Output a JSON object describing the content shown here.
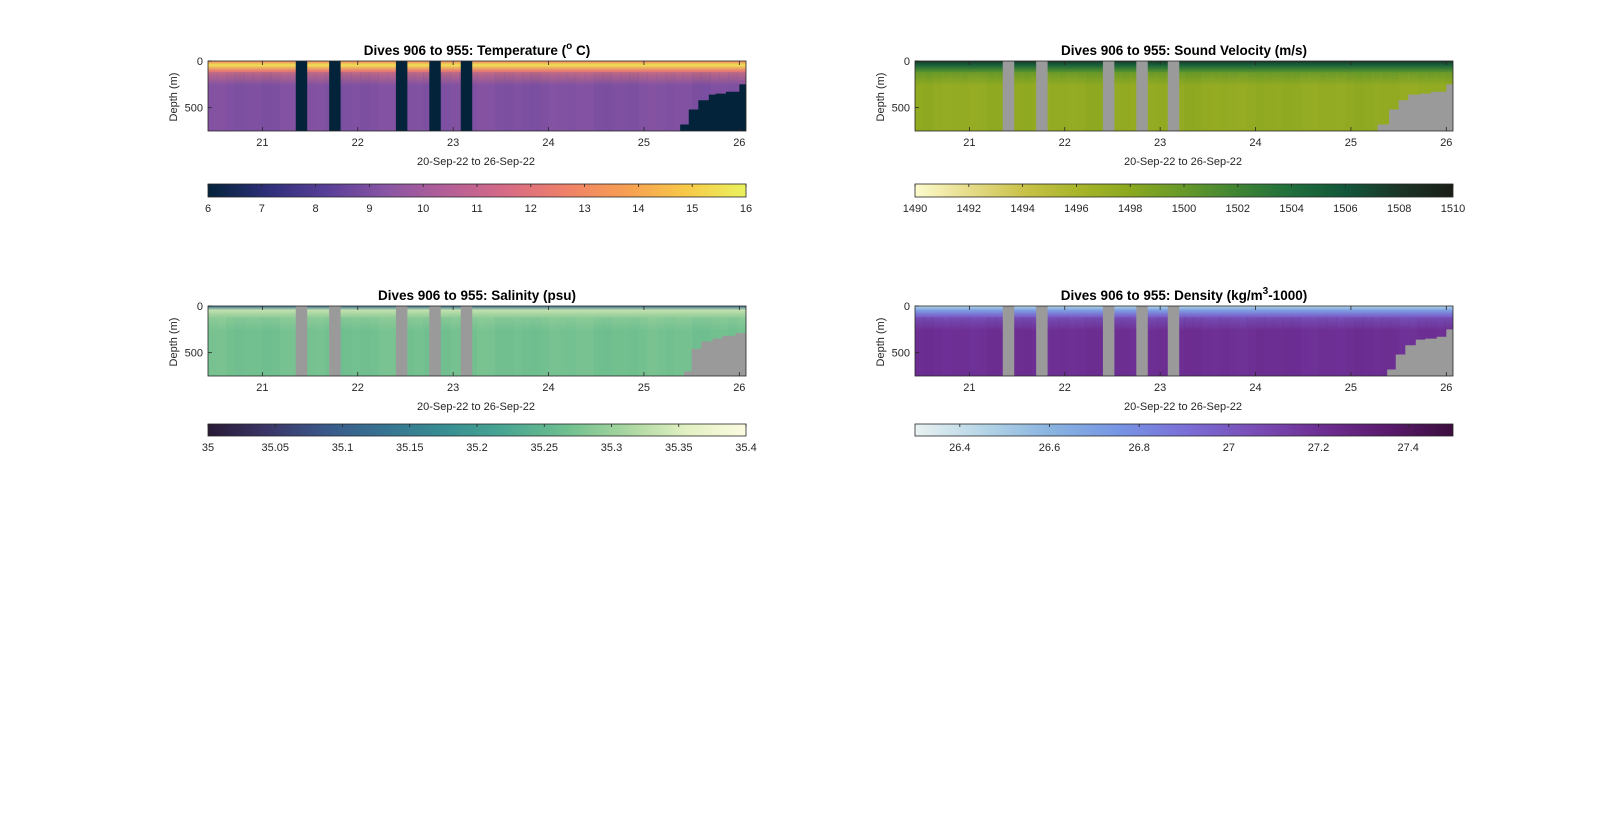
{
  "figure": {
    "panels": [
      {
        "id": "temperature",
        "title_main": "Dives 906 to 955: Temperature (",
        "title_sup": "o",
        "title_end": " C)"
      },
      {
        "id": "sound_velocity",
        "title_main": "Dives 906 to 955: Sound Velocity (m/s)",
        "title_sup": "",
        "title_end": ""
      },
      {
        "id": "salinity",
        "title_main": "Dives 906 to 955: Salinity (psu)",
        "title_sup": "",
        "title_end": ""
      },
      {
        "id": "density",
        "title_main": "Dives 906 to 955: Density (kg/m",
        "title_sup": "3",
        "title_end": "-1000)"
      }
    ]
  },
  "chart_data": [
    {
      "type": "heatmap",
      "title": "Dives 906 to 955: Temperature (o C)",
      "xlabel": "20-Sep-22 to 26-Sep-22",
      "ylabel": "Depth (m)",
      "x_ticks": [
        21,
        22,
        23,
        24,
        25,
        26
      ],
      "y_ticks": [
        0,
        500
      ],
      "xlim": [
        20.43,
        26.07
      ],
      "ylim": [
        750,
        0
      ],
      "clim": [
        6,
        16
      ],
      "colorbar_ticks": [
        6,
        7,
        8,
        9,
        10,
        11,
        12,
        13,
        14,
        15,
        16
      ],
      "colormap": [
        "#03233a",
        "#2e2f7a",
        "#5a3f98",
        "#8a56a4",
        "#b45f98",
        "#d76b85",
        "#ef8168",
        "#f79f52",
        "#f7c948",
        "#eaf25e"
      ],
      "missing_color": "#03233a",
      "mixed_layer_value": 15.5,
      "surface_value": 13,
      "deep_value": 9.1,
      "gap_columns": [
        21.35,
        21.7,
        22.4,
        22.75,
        23.08
      ],
      "gap_width": 0.12,
      "seafloor_profile": [
        [
          25.3,
          750
        ],
        [
          25.38,
          680
        ],
        [
          25.47,
          520
        ],
        [
          25.57,
          420
        ],
        [
          25.68,
          360
        ],
        [
          25.75,
          350
        ],
        [
          25.86,
          330
        ],
        [
          26.0,
          250
        ],
        [
          26.07,
          250
        ]
      ]
    },
    {
      "type": "heatmap",
      "title": "Dives 906 to 955: Sound Velocity (m/s)",
      "xlabel": "20-Sep-22 to 26-Sep-22",
      "ylabel": "Depth (m)",
      "x_ticks": [
        21,
        22,
        23,
        24,
        25,
        26
      ],
      "y_ticks": [
        0,
        500
      ],
      "xlim": [
        20.43,
        26.07
      ],
      "ylim": [
        750,
        0
      ],
      "clim": [
        1490,
        1510
      ],
      "colorbar_ticks": [
        1490,
        1492,
        1494,
        1496,
        1498,
        1500,
        1502,
        1504,
        1506,
        1508,
        1510
      ],
      "colormap": [
        "#fdfbce",
        "#e6dc8a",
        "#c9c24a",
        "#a9b52a",
        "#8aa81f",
        "#66992a",
        "#3f8434",
        "#1f6e3b",
        "#12563a",
        "#1b3526",
        "#1a1e17"
      ],
      "missing_color": "#9a9a9a",
      "mixed_layer_value": 1505,
      "surface_value": 1508,
      "deep_value": 1497.5,
      "gap_columns": [
        21.35,
        21.7,
        22.4,
        22.75,
        23.08
      ],
      "gap_width": 0.12,
      "seafloor_profile": [
        [
          25.2,
          750
        ],
        [
          25.28,
          680
        ],
        [
          25.4,
          520
        ],
        [
          25.5,
          420
        ],
        [
          25.6,
          360
        ],
        [
          25.72,
          350
        ],
        [
          25.84,
          330
        ],
        [
          26.0,
          250
        ],
        [
          26.07,
          250
        ]
      ]
    },
    {
      "type": "heatmap",
      "title": "Dives 906 to 955: Salinity (psu)",
      "xlabel": "20-Sep-22 to 26-Sep-22",
      "ylabel": "Depth (m)",
      "x_ticks": [
        21,
        22,
        23,
        24,
        25,
        26
      ],
      "y_ticks": [
        0,
        500
      ],
      "xlim": [
        20.43,
        26.07
      ],
      "ylim": [
        750,
        0
      ],
      "clim": [
        35,
        35.4
      ],
      "colorbar_ticks": [
        35,
        35.05,
        35.1,
        35.15,
        35.2,
        35.25,
        35.3,
        35.35,
        35.4
      ],
      "colormap": [
        "#291a35",
        "#3a3668",
        "#3a5a8a",
        "#377592",
        "#378f92",
        "#4aa792",
        "#6fbf8f",
        "#a8d6a0",
        "#e2f0c2",
        "#fcfbe1"
      ],
      "missing_color": "#9a9a9a",
      "mixed_layer_value": 35.33,
      "surface_value": 35.12,
      "deep_value": 35.27,
      "gap_columns": [
        21.35,
        21.7,
        22.4,
        22.75,
        23.08
      ],
      "gap_width": 0.12,
      "seafloor_profile": [
        [
          25.35,
          750
        ],
        [
          25.42,
          700
        ],
        [
          25.5,
          460
        ],
        [
          25.6,
          380
        ],
        [
          25.72,
          350
        ],
        [
          25.82,
          320
        ],
        [
          25.96,
          290
        ],
        [
          26.07,
          290
        ]
      ]
    },
    {
      "type": "heatmap",
      "title": "Dives 906 to 955: Density (kg/m3-1000)",
      "xlabel": "20-Sep-22 to 26-Sep-22",
      "ylabel": "Depth (m)",
      "x_ticks": [
        21,
        22,
        23,
        24,
        25,
        26
      ],
      "y_ticks": [
        0,
        500
      ],
      "xlim": [
        20.43,
        26.07
      ],
      "ylim": [
        750,
        0
      ],
      "clim": [
        26.3,
        27.5
      ],
      "colorbar_ticks": [
        26.4,
        26.6,
        26.8,
        27,
        27.2,
        27.4
      ],
      "colormap": [
        "#e9f2f2",
        "#b6d5e6",
        "#89b4e0",
        "#7796e4",
        "#7a70d8",
        "#7a4fb8",
        "#6e2f94",
        "#5a1a6e",
        "#3c0e3e"
      ],
      "missing_color": "#9a9a9a",
      "mixed_layer_value": 26.7,
      "surface_value": 26.45,
      "deep_value": 27.2,
      "gap_columns": [
        21.35,
        21.7,
        22.4,
        22.75,
        23.08
      ],
      "gap_width": 0.12,
      "seafloor_profile": [
        [
          25.3,
          750
        ],
        [
          25.38,
          680
        ],
        [
          25.47,
          520
        ],
        [
          25.57,
          420
        ],
        [
          25.68,
          360
        ],
        [
          25.78,
          350
        ],
        [
          25.9,
          330
        ],
        [
          26.0,
          250
        ],
        [
          26.07,
          250
        ]
      ]
    }
  ]
}
